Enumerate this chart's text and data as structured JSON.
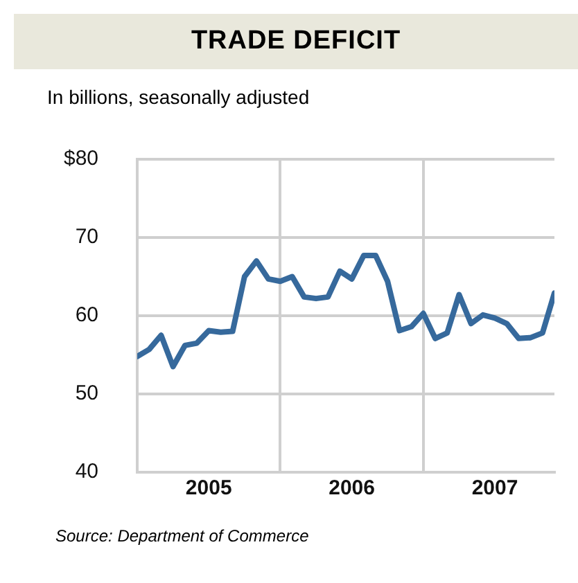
{
  "chart_data": {
    "type": "line",
    "title": "TRADE DEFICIT",
    "subtitle": "In billions, seasonally adjusted",
    "x": [
      "2005-01",
      "2005-02",
      "2005-03",
      "2005-04",
      "2005-05",
      "2005-06",
      "2005-07",
      "2005-08",
      "2005-09",
      "2005-10",
      "2005-11",
      "2005-12",
      "2006-01",
      "2006-02",
      "2006-03",
      "2006-04",
      "2006-05",
      "2006-06",
      "2006-07",
      "2006-08",
      "2006-09",
      "2006-10",
      "2006-11",
      "2006-12",
      "2007-01",
      "2007-02",
      "2007-03",
      "2007-04",
      "2007-05",
      "2007-06",
      "2007-07",
      "2007-08",
      "2007-09",
      "2007-10",
      "2007-11",
      "2007-12"
    ],
    "series": [
      {
        "color": "#36699c",
        "values": [
          54.8,
          55.7,
          57.5,
          53.5,
          56.2,
          56.5,
          58.1,
          57.9,
          58.0,
          65.0,
          67.0,
          64.7,
          64.4,
          65.0,
          62.4,
          62.2,
          62.4,
          65.7,
          64.7,
          67.7,
          67.7,
          64.4,
          58.1,
          58.6,
          60.3,
          57.1,
          57.8,
          62.7,
          59.0,
          60.1,
          59.7,
          59.0,
          57.1,
          57.2,
          57.8,
          62.9
        ]
      }
    ],
    "xlim": [
      "2005-01",
      "2007-12"
    ],
    "xticks": [
      {
        "value": "2005-01",
        "label": null
      },
      {
        "value": "2005-07",
        "label": "2005"
      },
      {
        "value": "2006-01",
        "label": null
      },
      {
        "value": "2006-07",
        "label": "2006"
      },
      {
        "value": "2007-01",
        "label": null
      },
      {
        "value": "2007-07",
        "label": "2007"
      }
    ],
    "ylim": [
      40,
      80
    ],
    "yticks": [
      40,
      50,
      60,
      70,
      {
        "value": 80,
        "label": "$80"
      }
    ],
    "grid": true,
    "legend": false,
    "marker": "none",
    "line_style": "solid",
    "annotations": [
      "Source: Department of Commerce"
    ]
  }
}
